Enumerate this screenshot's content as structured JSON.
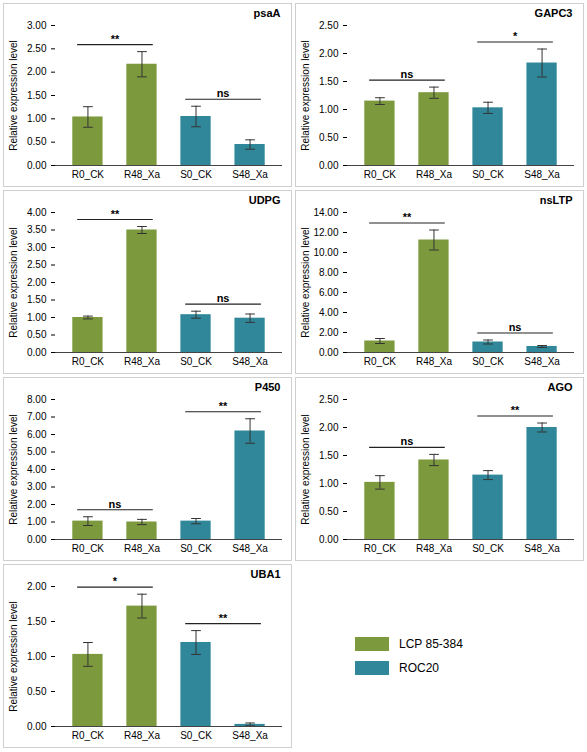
{
  "chart_data": [
    {
      "type": "bar",
      "title": "psaA",
      "y_label": "Relative expression level",
      "categories": [
        "R0_CK",
        "R48_Xa",
        "S0_CK",
        "S48_Xa"
      ],
      "series": [
        {
          "name": "LCP 85-384",
          "color": "#7c9a3d",
          "values": [
            1.04,
            2.17,
            null,
            null
          ],
          "errors": [
            0.22,
            0.27,
            null,
            null
          ]
        },
        {
          "name": "ROC20",
          "color": "#2f8799",
          "values": [
            null,
            null,
            1.05,
            0.45
          ],
          "errors": [
            null,
            null,
            0.22,
            0.1
          ]
        }
      ],
      "ylim": [
        0,
        3
      ],
      "yticks": [
        {
          "value": 0,
          "label": "0.00"
        },
        {
          "value": 0.5,
          "label": "0.50"
        },
        {
          "value": 1,
          "label": "1.00"
        },
        {
          "value": 1.5,
          "label": "1.50"
        },
        {
          "value": 2,
          "label": "2.00"
        },
        {
          "value": 2.5,
          "label": "2.50"
        },
        {
          "value": 3,
          "label": "3.00"
        }
      ],
      "annotations": [
        {
          "from": "R0_CK",
          "to": "R48_Xa",
          "label": "**"
        },
        {
          "from": "S0_CK",
          "to": "S48_Xa",
          "label": "ns"
        }
      ]
    },
    {
      "type": "bar",
      "title": "GAPC3",
      "y_label": "Relative expression level",
      "categories": [
        "R0_CK",
        "R48_Xa",
        "S0_CK",
        "S48_Xa"
      ],
      "series": [
        {
          "name": "LCP 85-384",
          "color": "#7c9a3d",
          "values": [
            1.15,
            1.3,
            null,
            null
          ],
          "errors": [
            0.06,
            0.1,
            null,
            null
          ]
        },
        {
          "name": "ROC20",
          "color": "#2f8799",
          "values": [
            null,
            null,
            1.03,
            1.83
          ],
          "errors": [
            null,
            null,
            0.1,
            0.25
          ]
        }
      ],
      "ylim": [
        0,
        2.5
      ],
      "yticks": [
        {
          "value": 0,
          "label": "0.00"
        },
        {
          "value": 0.5,
          "label": "0.50"
        },
        {
          "value": 1,
          "label": "1.00"
        },
        {
          "value": 1.5,
          "label": "1.50"
        },
        {
          "value": 2,
          "label": "2.00"
        },
        {
          "value": 2.5,
          "label": "2.50"
        }
      ],
      "annotations": [
        {
          "from": "R0_CK",
          "to": "R48_Xa",
          "label": "ns"
        },
        {
          "from": "S0_CK",
          "to": "S48_Xa",
          "label": "*"
        }
      ]
    },
    {
      "type": "bar",
      "title": "UDPG",
      "y_label": "Relative expression level",
      "categories": [
        "R0_CK",
        "R48_Xa",
        "S0_CK",
        "S48_Xa"
      ],
      "series": [
        {
          "name": "LCP 85-384",
          "color": "#7c9a3d",
          "values": [
            1.0,
            3.5,
            null,
            null
          ],
          "errors": [
            0.04,
            0.1,
            null,
            null
          ]
        },
        {
          "name": "ROC20",
          "color": "#2f8799",
          "values": [
            null,
            null,
            1.08,
            0.98
          ],
          "errors": [
            null,
            null,
            0.1,
            0.12
          ]
        }
      ],
      "ylim": [
        0,
        4
      ],
      "yticks": [
        {
          "value": 0,
          "label": "0.00"
        },
        {
          "value": 0.5,
          "label": "0.50"
        },
        {
          "value": 1,
          "label": "1.00"
        },
        {
          "value": 1.5,
          "label": "1.50"
        },
        {
          "value": 2,
          "label": "2.00"
        },
        {
          "value": 2.5,
          "label": "2.50"
        },
        {
          "value": 3,
          "label": "3.00"
        },
        {
          "value": 3.5,
          "label": "3.50"
        },
        {
          "value": 4,
          "label": "4.00"
        }
      ],
      "annotations": [
        {
          "from": "R0_CK",
          "to": "R48_Xa",
          "label": "**"
        },
        {
          "from": "S0_CK",
          "to": "S48_Xa",
          "label": "ns"
        }
      ]
    },
    {
      "type": "bar",
      "title": "nsLTP",
      "y_label": "Relative expression level",
      "categories": [
        "R0_CK",
        "R48_Xa",
        "S0_CK",
        "S48_Xa"
      ],
      "series": [
        {
          "name": "LCP 85-384",
          "color": "#7c9a3d",
          "values": [
            1.15,
            11.25,
            null,
            null
          ],
          "errors": [
            0.25,
            1.0,
            null,
            null
          ]
        },
        {
          "name": "ROC20",
          "color": "#2f8799",
          "values": [
            null,
            null,
            1.05,
            0.6
          ],
          "errors": [
            null,
            null,
            0.2,
            0.1
          ]
        }
      ],
      "ylim": [
        0,
        14
      ],
      "yticks": [
        {
          "value": 0,
          "label": "0.00"
        },
        {
          "value": 2,
          "label": "2.00"
        },
        {
          "value": 4,
          "label": "4.00"
        },
        {
          "value": 6,
          "label": "6.00"
        },
        {
          "value": 8,
          "label": "8.00"
        },
        {
          "value": 10,
          "label": "10.00"
        },
        {
          "value": 12,
          "label": "12.00"
        },
        {
          "value": 14,
          "label": "14.00"
        }
      ],
      "annotations": [
        {
          "from": "R0_CK",
          "to": "R48_Xa",
          "label": "**"
        },
        {
          "from": "S0_CK",
          "to": "S48_Xa",
          "label": "ns"
        }
      ]
    },
    {
      "type": "bar",
      "title": "P450",
      "y_label": "Relative expression level",
      "categories": [
        "R0_CK",
        "R48_Xa",
        "S0_CK",
        "S48_Xa"
      ],
      "series": [
        {
          "name": "LCP 85-384",
          "color": "#7c9a3d",
          "values": [
            1.05,
            1.0,
            null,
            null
          ],
          "errors": [
            0.25,
            0.15,
            null,
            null
          ]
        },
        {
          "name": "ROC20",
          "color": "#2f8799",
          "values": [
            null,
            null,
            1.05,
            6.2
          ],
          "errors": [
            null,
            null,
            0.15,
            0.7
          ]
        }
      ],
      "ylim": [
        0,
        8
      ],
      "yticks": [
        {
          "value": 0,
          "label": "0.00"
        },
        {
          "value": 1,
          "label": "1.00"
        },
        {
          "value": 2,
          "label": "2.00"
        },
        {
          "value": 3,
          "label": "3.00"
        },
        {
          "value": 4,
          "label": "4.00"
        },
        {
          "value": 5,
          "label": "5.00"
        },
        {
          "value": 6,
          "label": "6.00"
        },
        {
          "value": 7,
          "label": "7.00"
        },
        {
          "value": 8,
          "label": "8.00"
        }
      ],
      "annotations": [
        {
          "from": "R0_CK",
          "to": "R48_Xa",
          "label": "ns"
        },
        {
          "from": "S0_CK",
          "to": "S48_Xa",
          "label": "**"
        }
      ]
    },
    {
      "type": "bar",
      "title": "AGO",
      "y_label": "Relative expression level",
      "categories": [
        "R0_CK",
        "R48_Xa",
        "S0_CK",
        "S48_Xa"
      ],
      "series": [
        {
          "name": "LCP 85-384",
          "color": "#7c9a3d",
          "values": [
            1.02,
            1.42,
            null,
            null
          ],
          "errors": [
            0.12,
            0.1,
            null,
            null
          ]
        },
        {
          "name": "ROC20",
          "color": "#2f8799",
          "values": [
            null,
            null,
            1.15,
            2.0
          ],
          "errors": [
            null,
            null,
            0.08,
            0.08
          ]
        }
      ],
      "ylim": [
        0,
        2.5
      ],
      "yticks": [
        {
          "value": 0,
          "label": "0.00"
        },
        {
          "value": 0.5,
          "label": "0.50"
        },
        {
          "value": 1,
          "label": "1.00"
        },
        {
          "value": 1.5,
          "label": "1.50"
        },
        {
          "value": 2,
          "label": "2.00"
        },
        {
          "value": 2.5,
          "label": "2.50"
        }
      ],
      "annotations": [
        {
          "from": "R0_CK",
          "to": "R48_Xa",
          "label": "ns"
        },
        {
          "from": "S0_CK",
          "to": "S48_Xa",
          "label": "**"
        }
      ]
    },
    {
      "type": "bar",
      "title": "UBA1",
      "y_label": "Relative expression level",
      "categories": [
        "R0_CK",
        "R48_Xa",
        "S0_CK",
        "S48_Xa"
      ],
      "series": [
        {
          "name": "LCP 85-384",
          "color": "#7c9a3d",
          "values": [
            1.03,
            1.72,
            null,
            null
          ],
          "errors": [
            0.17,
            0.17,
            null,
            null
          ]
        },
        {
          "name": "ROC20",
          "color": "#2f8799",
          "values": [
            null,
            null,
            1.2,
            0.03
          ],
          "errors": [
            null,
            null,
            0.17,
            0.02
          ]
        }
      ],
      "ylim": [
        0,
        2
      ],
      "yticks": [
        {
          "value": 0,
          "label": "0.00"
        },
        {
          "value": 0.5,
          "label": "0.50"
        },
        {
          "value": 1,
          "label": "1.00"
        },
        {
          "value": 1.5,
          "label": "1.50"
        },
        {
          "value": 2,
          "label": "2.00"
        }
      ],
      "annotations": [
        {
          "from": "R0_CK",
          "to": "R48_Xa",
          "label": "*"
        },
        {
          "from": "S0_CK",
          "to": "S48_Xa",
          "label": "**"
        }
      ]
    }
  ]
}
